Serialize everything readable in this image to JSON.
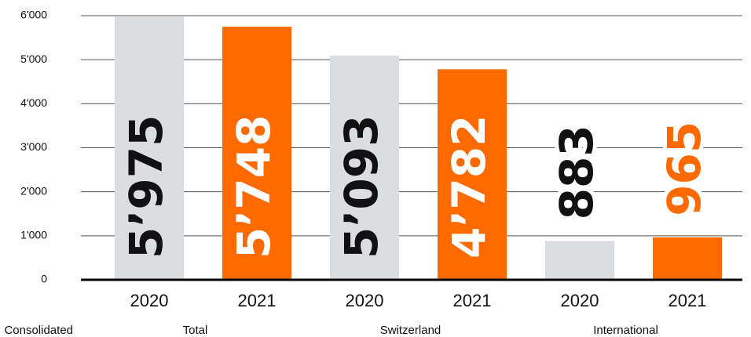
{
  "chart_data": {
    "type": "bar",
    "categories": [
      "2020",
      "2021",
      "2020",
      "2021",
      "2020",
      "2021"
    ],
    "values": [
      5975,
      5748,
      5093,
      4782,
      883,
      965
    ],
    "value_labels": [
      "5’975",
      "5’748",
      "5’093",
      "4’782",
      "883",
      "965"
    ],
    "colors": [
      "#dcdde1",
      "#ff6a00",
      "#dcdde1",
      "#ff6a00",
      "#dcdde1",
      "#ff6a00"
    ],
    "groups": [
      "Total",
      "Switzerland",
      "International"
    ],
    "axis_label": "Consolidated",
    "ylim": [
      0,
      6000
    ],
    "yticks": [
      0,
      {
        "value": 1000,
        "label": "1'000"
      },
      {
        "value": 2000,
        "label": "2'000"
      },
      {
        "value": 3000,
        "label": "3'000"
      },
      {
        "value": 4000,
        "label": "4'000"
      },
      {
        "value": 5000,
        "label": "5'000"
      },
      {
        "value": 6000,
        "label": "6'000"
      }
    ],
    "grid": true
  }
}
